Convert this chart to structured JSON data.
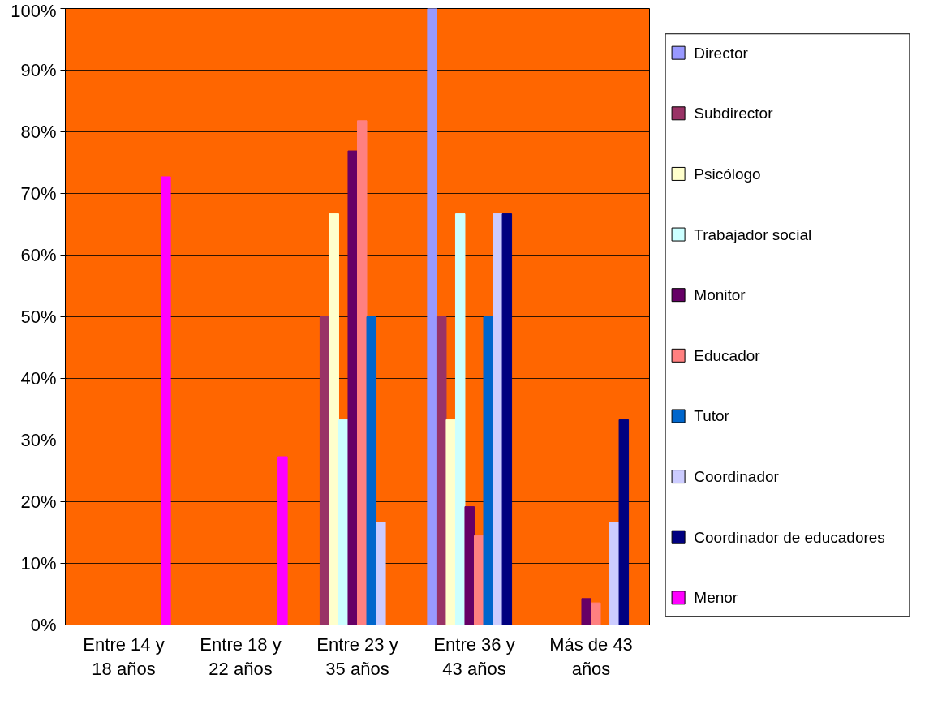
{
  "chart_data": {
    "type": "bar",
    "categories": [
      "Entre 14 y\n18 años",
      "Entre 18 y\n22 años",
      "Entre 23 y\n35 años",
      "Entre 36 y\n43 años",
      "Más de 43\naños"
    ],
    "series": [
      {
        "name": "Director",
        "color": "#9999ff",
        "values": [
          0,
          0,
          0,
          100,
          0
        ]
      },
      {
        "name": "Subdirector",
        "color": "#993366",
        "values": [
          0,
          0,
          50,
          50,
          0
        ]
      },
      {
        "name": "Psicólogo",
        "color": "#ffffcc",
        "values": [
          0,
          0,
          66.7,
          33.3,
          0
        ]
      },
      {
        "name": "Trabajador social",
        "color": "#ccffff",
        "values": [
          0,
          0,
          33.3,
          66.7,
          0
        ]
      },
      {
        "name": "Monitor",
        "color": "#660066",
        "values": [
          0,
          0,
          76.9,
          19.2,
          4.3
        ]
      },
      {
        "name": "Educador",
        "color": "#ff8080",
        "values": [
          0,
          0,
          81.8,
          14.5,
          3.6
        ]
      },
      {
        "name": "Tutor",
        "color": "#0066cc",
        "values": [
          0,
          0,
          50,
          50,
          0
        ]
      },
      {
        "name": "Coordinador",
        "color": "#ccccff",
        "values": [
          0,
          0,
          16.7,
          66.7,
          16.7
        ]
      },
      {
        "name": "Coordinador de educadores",
        "color": "#000080",
        "values": [
          0,
          0,
          0,
          66.7,
          33.3
        ]
      },
      {
        "name": "Menor",
        "color": "#ff00ff",
        "values": [
          72.7,
          27.3,
          0,
          0,
          0
        ]
      }
    ],
    "ylim": [
      0,
      100
    ],
    "yticks": [
      {
        "value": 0,
        "label": "0%"
      },
      {
        "value": 10,
        "label": "10%"
      },
      {
        "value": 20,
        "label": "20%"
      },
      {
        "value": 30,
        "label": "30%"
      },
      {
        "value": 40,
        "label": "40%"
      },
      {
        "value": 50,
        "label": "50%"
      },
      {
        "value": 60,
        "label": "60%"
      },
      {
        "value": 70,
        "label": "70%"
      },
      {
        "value": 80,
        "label": "80%"
      },
      {
        "value": 90,
        "label": "90%"
      },
      {
        "value": 100,
        "label": "100%"
      }
    ],
    "grid": "y",
    "legend": "right"
  }
}
